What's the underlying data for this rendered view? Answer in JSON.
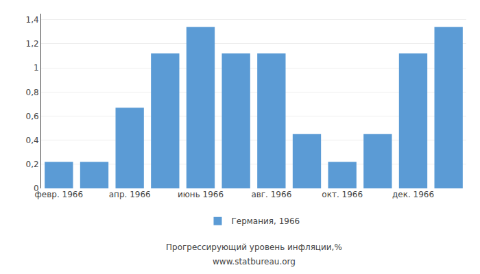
{
  "chart_data": {
    "type": "bar",
    "categories": [
      "февр. 1966",
      null,
      "апр. 1966",
      null,
      "июнь 1966",
      null,
      "авг. 1966",
      null,
      "окт. 1966",
      null,
      "дек. 1966",
      null
    ],
    "series": [
      {
        "name": "Германия, 1966",
        "color": "#5B9BD5",
        "values": [
          0.22,
          0.22,
          0.67,
          1.12,
          1.34,
          1.12,
          1.12,
          0.45,
          0.22,
          0.45,
          1.12,
          1.34
        ]
      }
    ],
    "ylim": [
      0,
      1.45
    ],
    "yticks": [
      0,
      {
        "value": 0.2,
        "label": "0,2"
      },
      {
        "value": 0.4,
        "label": "0,4"
      },
      {
        "value": 0.6,
        "label": "0,6"
      },
      {
        "value": 0.8,
        "label": "0,8"
      },
      1,
      {
        "value": 1.2,
        "label": "1,2"
      },
      {
        "value": 1.4,
        "label": "1,4"
      }
    ],
    "grid": true,
    "legend": "bottom",
    "annotations": [
      "Прогрессирующий уровень инфляции,%",
      "www.statbureau.org"
    ]
  }
}
